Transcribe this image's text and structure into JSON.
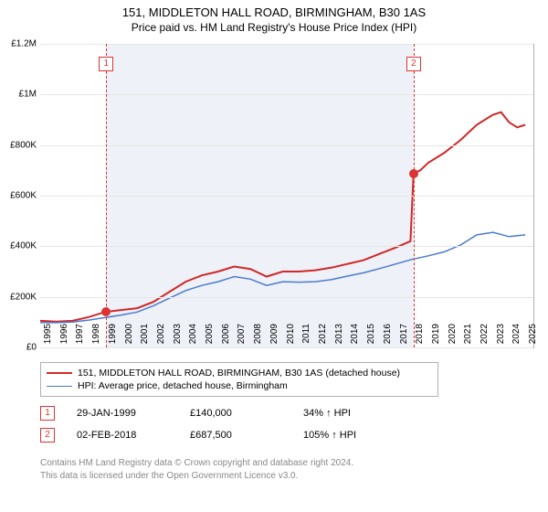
{
  "title_line1": "151, MIDDLETON HALL ROAD, BIRMINGHAM, B30 1AS",
  "title_line2": "Price paid vs. HM Land Registry's House Price Index (HPI)",
  "chart": {
    "type": "line",
    "background_color": "#ffffff",
    "shaded_region_color": "#eef1f7",
    "grid_color": "#e6e6e6",
    "axis_color": "#b0b0b0",
    "label_fontsize": 10,
    "x_years": [
      1995,
      1996,
      1997,
      1998,
      1999,
      2000,
      2001,
      2002,
      2003,
      2004,
      2005,
      2006,
      2007,
      2008,
      2009,
      2010,
      2011,
      2012,
      2013,
      2014,
      2015,
      2016,
      2017,
      2018,
      2019,
      2020,
      2021,
      2022,
      2023,
      2024,
      2025
    ],
    "xlim": [
      1995,
      2025.5
    ],
    "ylim": [
      0,
      1200000
    ],
    "ytick_step": 200000,
    "ytick_labels": [
      "£0",
      "£200K",
      "£400K",
      "£600K",
      "£800K",
      "£1M",
      "£1.2M"
    ],
    "shaded_region_xrange": [
      1999.08,
      2018.09
    ],
    "series": [
      {
        "name": "property",
        "label": "151, MIDDLETON HALL ROAD, BIRMINGHAM, B30 1AS (detached house)",
        "color": "#d02828",
        "line_width": 2,
        "points": [
          [
            1995,
            105000
          ],
          [
            1996,
            102000
          ],
          [
            1997,
            105000
          ],
          [
            1998,
            120000
          ],
          [
            1999,
            140000
          ],
          [
            2000,
            148000
          ],
          [
            2001,
            155000
          ],
          [
            2002,
            180000
          ],
          [
            2003,
            220000
          ],
          [
            2004,
            260000
          ],
          [
            2005,
            285000
          ],
          [
            2006,
            300000
          ],
          [
            2007,
            320000
          ],
          [
            2008,
            310000
          ],
          [
            2009,
            280000
          ],
          [
            2010,
            300000
          ],
          [
            2011,
            300000
          ],
          [
            2012,
            305000
          ],
          [
            2013,
            315000
          ],
          [
            2014,
            330000
          ],
          [
            2015,
            345000
          ],
          [
            2016,
            370000
          ],
          [
            2017,
            395000
          ],
          [
            2017.9,
            420000
          ],
          [
            2018.09,
            687500
          ],
          [
            2018.5,
            700000
          ],
          [
            2019,
            730000
          ],
          [
            2020,
            770000
          ],
          [
            2021,
            820000
          ],
          [
            2022,
            880000
          ],
          [
            2023,
            920000
          ],
          [
            2023.5,
            930000
          ],
          [
            2024,
            890000
          ],
          [
            2024.5,
            870000
          ],
          [
            2025,
            880000
          ]
        ]
      },
      {
        "name": "hpi",
        "label": "HPI: Average price, detached house, Birmingham",
        "color": "#4a7bd0",
        "line_width": 1.5,
        "points": [
          [
            1995,
            98000
          ],
          [
            1996,
            98000
          ],
          [
            1997,
            100000
          ],
          [
            1998,
            108000
          ],
          [
            1999,
            118000
          ],
          [
            2000,
            128000
          ],
          [
            2001,
            140000
          ],
          [
            2002,
            165000
          ],
          [
            2003,
            195000
          ],
          [
            2004,
            225000
          ],
          [
            2005,
            245000
          ],
          [
            2006,
            260000
          ],
          [
            2007,
            280000
          ],
          [
            2008,
            270000
          ],
          [
            2009,
            245000
          ],
          [
            2010,
            260000
          ],
          [
            2011,
            258000
          ],
          [
            2012,
            260000
          ],
          [
            2013,
            268000
          ],
          [
            2014,
            282000
          ],
          [
            2015,
            295000
          ],
          [
            2016,
            312000
          ],
          [
            2017,
            330000
          ],
          [
            2018,
            348000
          ],
          [
            2019,
            362000
          ],
          [
            2020,
            378000
          ],
          [
            2021,
            405000
          ],
          [
            2022,
            445000
          ],
          [
            2023,
            455000
          ],
          [
            2024,
            438000
          ],
          [
            2025,
            445000
          ]
        ]
      }
    ],
    "sale_markers": [
      {
        "num": "1",
        "x": 1999.08,
        "y": 140000,
        "box_y": 1120000
      },
      {
        "num": "2",
        "x": 2018.09,
        "y": 687500,
        "box_y": 1120000
      }
    ]
  },
  "legend": {
    "rows": [
      {
        "color": "#d02828",
        "width": 2,
        "text": "151, MIDDLETON HALL ROAD, BIRMINGHAM, B30 1AS (detached house)"
      },
      {
        "color": "#4a7bd0",
        "width": 1.5,
        "text": "HPI: Average price, detached house, Birmingham"
      }
    ]
  },
  "sales": [
    {
      "num": "1",
      "date": "29-JAN-1999",
      "price": "£140,000",
      "vs_hpi": "34% ↑ HPI"
    },
    {
      "num": "2",
      "date": "02-FEB-2018",
      "price": "£687,500",
      "vs_hpi": "105% ↑ HPI"
    }
  ],
  "footer_line1": "Contains HM Land Registry data © Crown copyright and database right 2024.",
  "footer_line2": "This data is licensed under the Open Government Licence v3.0."
}
